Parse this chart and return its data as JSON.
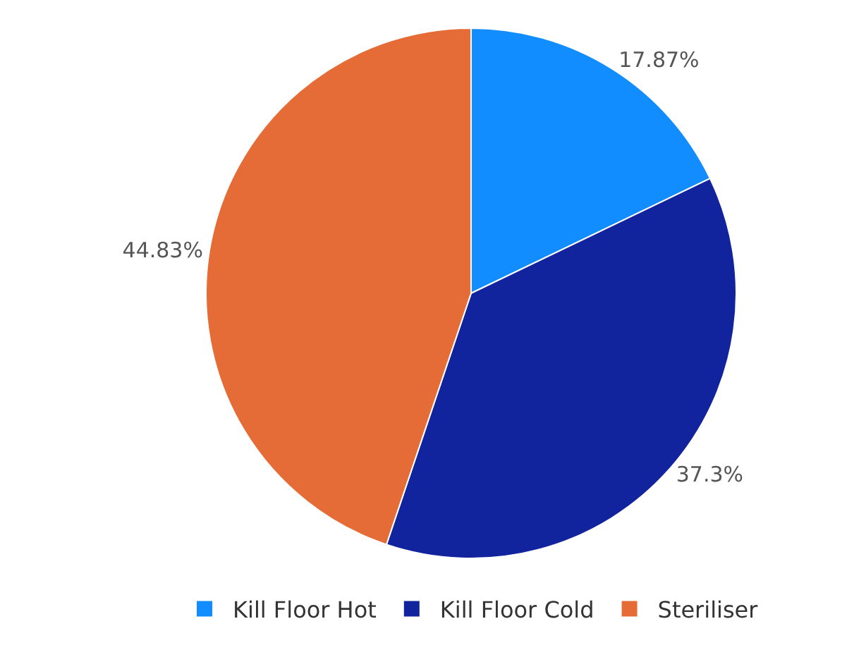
{
  "chart_data": {
    "type": "pie",
    "categories": [
      "Kill Floor Hot",
      "Kill Floor Cold",
      "Steriliser"
    ],
    "values": [
      17.87,
      37.3,
      44.83
    ],
    "value_labels": [
      "17.87%",
      "37.3%",
      "44.83%"
    ],
    "colors": [
      "#118dff",
      "#12239e",
      "#e66c37"
    ],
    "legend": "bottom"
  }
}
